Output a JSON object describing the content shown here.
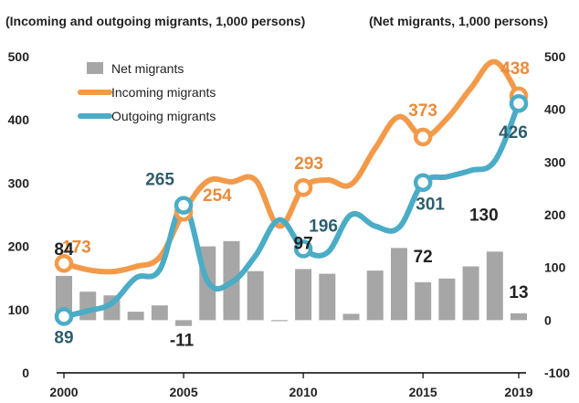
{
  "chart_data": {
    "type": "bar+line",
    "y_left_title": "(Incoming and outgoing migrants, 1,000 persons)",
    "y_right_title": "(Net migrants, 1,000 persons)",
    "x_ticks": [
      "2000",
      "2005",
      "2010",
      "2015",
      "2019"
    ],
    "y_left_ticks": [
      "0",
      "100",
      "200",
      "300",
      "400",
      "500"
    ],
    "y_right_ticks": [
      "-100",
      "0",
      "100",
      "200",
      "300",
      "400",
      "500"
    ],
    "ylim_left": [
      0,
      500
    ],
    "ylim_right": [
      -100,
      500
    ],
    "xlim": [
      2000,
      2019
    ],
    "legend_position": "top-left",
    "x": [
      2000,
      2001,
      2002,
      2003,
      2004,
      2005,
      2006,
      2007,
      2008,
      2009,
      2010,
      2011,
      2012,
      2013,
      2014,
      2015,
      2016,
      2017,
      2018,
      2019
    ],
    "series": [
      {
        "name": "Net migrants",
        "type": "bar",
        "axis": "right",
        "color": "#a6a6a6",
        "values": [
          84,
          54,
          47,
          16,
          28,
          -11,
          140,
          150,
          93,
          -2,
          97,
          88,
          12,
          94,
          137,
          72,
          79,
          102,
          130,
          13
        ]
      },
      {
        "name": "Incoming migrants",
        "type": "line",
        "axis": "left",
        "color": "#f39a4a",
        "values": [
          173,
          163,
          160,
          168,
          183,
          254,
          303,
          302,
          305,
          232,
          293,
          305,
          298,
          355,
          405,
          373,
          402,
          450,
          492,
          438
        ]
      },
      {
        "name": "Outgoing migrants",
        "type": "line",
        "axis": "left",
        "color": "#4bacc6",
        "values": [
          89,
          98,
          110,
          150,
          163,
          265,
          145,
          143,
          185,
          242,
          196,
          190,
          250,
          232,
          230,
          301,
          310,
          320,
          335,
          426
        ]
      }
    ],
    "data_labels": {
      "net": [
        {
          "index": 0,
          "text": "84"
        },
        {
          "index": 5,
          "text": "-11"
        },
        {
          "index": 10,
          "text": "97"
        },
        {
          "index": 15,
          "text": "72"
        },
        {
          "index": 18,
          "text": "130"
        },
        {
          "index": 19,
          "text": "13"
        }
      ],
      "incoming": [
        {
          "index": 0,
          "text": "173"
        },
        {
          "index": 5,
          "text": "254"
        },
        {
          "index": 10,
          "text": "293"
        },
        {
          "index": 15,
          "text": "373"
        },
        {
          "index": 19,
          "text": "438"
        }
      ],
      "outgoing": [
        {
          "index": 0,
          "text": "89"
        },
        {
          "index": 5,
          "text": "265"
        },
        {
          "index": 10,
          "text": "196"
        },
        {
          "index": 15,
          "text": "301"
        },
        {
          "index": 19,
          "text": "426"
        }
      ]
    },
    "markers_at": [
      0,
      5,
      10,
      15,
      19
    ],
    "label_colors": {
      "incoming": "#e98b3a",
      "outgoing": "#2f5d6e",
      "net": "#222222"
    }
  }
}
